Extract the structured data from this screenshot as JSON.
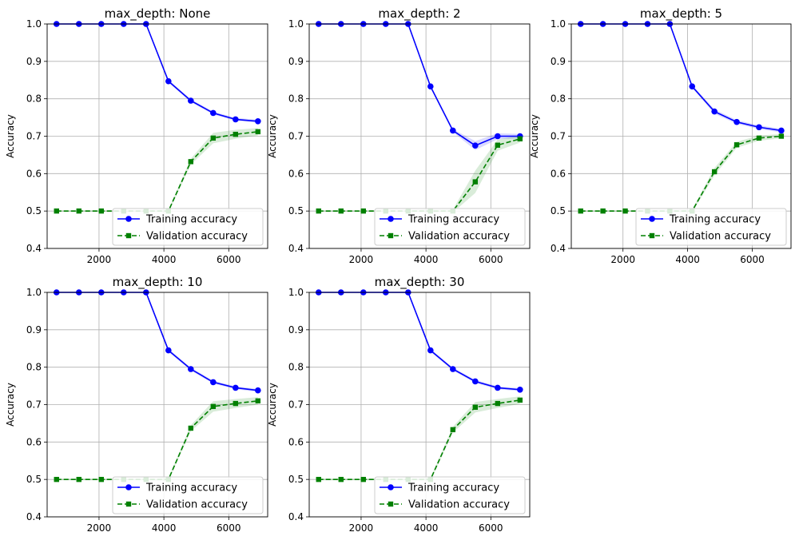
{
  "figure": {
    "background": "#ffffff",
    "colors": {
      "training": "#0000ff",
      "validation": "#008000",
      "grid": "#b0b0b0",
      "legend_border": "#cccccc"
    }
  },
  "chart_data": [
    {
      "type": "line",
      "title": "max_depth: None",
      "xlabel": "",
      "ylabel": "Accuracy",
      "xlim": [
        400,
        7200
      ],
      "ylim": [
        0.4,
        1.0
      ],
      "xticks": [
        2000,
        4000,
        6000
      ],
      "xtick_labels": [
        "2000",
        "4000",
        "6000"
      ],
      "yticks": [
        0.4,
        0.5,
        0.6,
        0.7,
        0.8,
        0.9,
        1.0
      ],
      "ytick_labels": [
        "0.4",
        "0.5",
        "0.6",
        "0.7",
        "0.8",
        "0.9",
        "1.0"
      ],
      "grid": true,
      "legend": "lower-right",
      "x": [
        690,
        1380,
        2070,
        2760,
        3450,
        4140,
        4830,
        5520,
        6210,
        6900
      ],
      "series": [
        {
          "name": "Training accuracy",
          "style": "solid",
          "marker": "circle",
          "color": "#0000ff",
          "values": [
            1.0,
            1.0,
            1.0,
            1.0,
            1.0,
            0.847,
            0.795,
            0.762,
            0.745,
            0.74
          ],
          "band": [
            0.002,
            0.002,
            0.002,
            0.002,
            0.002,
            0.004,
            0.004,
            0.004,
            0.004,
            0.004
          ]
        },
        {
          "name": "Validation accuracy",
          "style": "dashed",
          "marker": "square",
          "color": "#008000",
          "values": [
            0.5,
            0.5,
            0.5,
            0.5,
            0.5,
            0.5,
            0.632,
            0.695,
            0.705,
            0.712
          ],
          "band": [
            0.002,
            0.002,
            0.002,
            0.002,
            0.002,
            0.004,
            0.008,
            0.014,
            0.012,
            0.01
          ]
        }
      ]
    },
    {
      "type": "line",
      "title": "max_depth: 2",
      "xlabel": "",
      "ylabel": "Accuracy",
      "xlim": [
        400,
        7200
      ],
      "ylim": [
        0.4,
        1.0
      ],
      "xticks": [
        2000,
        4000,
        6000
      ],
      "xtick_labels": [
        "2000",
        "4000",
        "6000"
      ],
      "yticks": [
        0.4,
        0.5,
        0.6,
        0.7,
        0.8,
        0.9,
        1.0
      ],
      "ytick_labels": [
        "0.4",
        "0.5",
        "0.6",
        "0.7",
        "0.8",
        "0.9",
        "1.0"
      ],
      "grid": true,
      "legend": "lower-right",
      "x": [
        690,
        1380,
        2070,
        2760,
        3450,
        4140,
        4830,
        5520,
        6210,
        6900
      ],
      "series": [
        {
          "name": "Training accuracy",
          "style": "solid",
          "marker": "circle",
          "color": "#0000ff",
          "values": [
            1.0,
            1.0,
            1.0,
            1.0,
            1.0,
            0.833,
            0.715,
            0.675,
            0.7,
            0.7
          ],
          "band": [
            0.002,
            0.002,
            0.002,
            0.002,
            0.002,
            0.004,
            0.004,
            0.012,
            0.008,
            0.006
          ]
        },
        {
          "name": "Validation accuracy",
          "style": "dashed",
          "marker": "square",
          "color": "#008000",
          "values": [
            0.5,
            0.5,
            0.5,
            0.5,
            0.5,
            0.5,
            0.5,
            0.578,
            0.676,
            0.693
          ],
          "band": [
            0.002,
            0.002,
            0.002,
            0.002,
            0.002,
            0.004,
            0.004,
            0.03,
            0.015,
            0.01
          ]
        }
      ]
    },
    {
      "type": "line",
      "title": "max_depth: 5",
      "xlabel": "",
      "ylabel": "Accuracy",
      "xlim": [
        400,
        7200
      ],
      "ylim": [
        0.4,
        1.0
      ],
      "xticks": [
        2000,
        4000,
        6000
      ],
      "xtick_labels": [
        "2000",
        "4000",
        "6000"
      ],
      "yticks": [
        0.4,
        0.5,
        0.6,
        0.7,
        0.8,
        0.9,
        1.0
      ],
      "ytick_labels": [
        "0.4",
        "0.5",
        "0.6",
        "0.7",
        "0.8",
        "0.9",
        "1.0"
      ],
      "grid": true,
      "legend": "lower-right",
      "x": [
        690,
        1380,
        2070,
        2760,
        3450,
        4140,
        4830,
        5520,
        6210,
        6900
      ],
      "series": [
        {
          "name": "Training accuracy",
          "style": "solid",
          "marker": "circle",
          "color": "#0000ff",
          "values": [
            1.0,
            1.0,
            1.0,
            1.0,
            1.0,
            0.833,
            0.766,
            0.738,
            0.724,
            0.715
          ],
          "band": [
            0.002,
            0.002,
            0.002,
            0.002,
            0.002,
            0.004,
            0.006,
            0.005,
            0.005,
            0.005
          ]
        },
        {
          "name": "Validation accuracy",
          "style": "dashed",
          "marker": "square",
          "color": "#008000",
          "values": [
            0.5,
            0.5,
            0.5,
            0.5,
            0.5,
            0.5,
            0.605,
            0.677,
            0.695,
            0.7
          ],
          "band": [
            0.002,
            0.002,
            0.002,
            0.002,
            0.002,
            0.004,
            0.01,
            0.008,
            0.007,
            0.006
          ]
        }
      ]
    },
    {
      "type": "line",
      "title": "max_depth: 10",
      "xlabel": "",
      "ylabel": "Accuracy",
      "xlim": [
        400,
        7200
      ],
      "ylim": [
        0.4,
        1.0
      ],
      "xticks": [
        2000,
        4000,
        6000
      ],
      "xtick_labels": [
        "2000",
        "4000",
        "6000"
      ],
      "yticks": [
        0.4,
        0.5,
        0.6,
        0.7,
        0.8,
        0.9,
        1.0
      ],
      "ytick_labels": [
        "0.4",
        "0.5",
        "0.6",
        "0.7",
        "0.8",
        "0.9",
        "1.0"
      ],
      "grid": true,
      "legend": "lower-right",
      "x": [
        690,
        1380,
        2070,
        2760,
        3450,
        4140,
        4830,
        5520,
        6210,
        6900
      ],
      "series": [
        {
          "name": "Training accuracy",
          "style": "solid",
          "marker": "circle",
          "color": "#0000ff",
          "values": [
            1.0,
            1.0,
            1.0,
            1.0,
            1.0,
            0.845,
            0.795,
            0.76,
            0.745,
            0.738
          ],
          "band": [
            0.002,
            0.002,
            0.002,
            0.002,
            0.002,
            0.004,
            0.004,
            0.004,
            0.004,
            0.004
          ]
        },
        {
          "name": "Validation accuracy",
          "style": "dashed",
          "marker": "square",
          "color": "#008000",
          "values": [
            0.5,
            0.5,
            0.5,
            0.5,
            0.5,
            0.5,
            0.637,
            0.695,
            0.703,
            0.71
          ],
          "band": [
            0.002,
            0.002,
            0.002,
            0.002,
            0.002,
            0.004,
            0.008,
            0.014,
            0.012,
            0.01
          ]
        }
      ]
    },
    {
      "type": "line",
      "title": "max_depth: 30",
      "xlabel": "",
      "ylabel": "Accuracy",
      "xlim": [
        400,
        7200
      ],
      "ylim": [
        0.4,
        1.0
      ],
      "xticks": [
        2000,
        4000,
        6000
      ],
      "xtick_labels": [
        "2000",
        "4000",
        "6000"
      ],
      "yticks": [
        0.4,
        0.5,
        0.6,
        0.7,
        0.8,
        0.9,
        1.0
      ],
      "ytick_labels": [
        "0.4",
        "0.5",
        "0.6",
        "0.7",
        "0.8",
        "0.9",
        "1.0"
      ],
      "grid": true,
      "legend": "lower-right",
      "x": [
        690,
        1380,
        2070,
        2760,
        3450,
        4140,
        4830,
        5520,
        6210,
        6900
      ],
      "series": [
        {
          "name": "Training accuracy",
          "style": "solid",
          "marker": "circle",
          "color": "#0000ff",
          "values": [
            1.0,
            1.0,
            1.0,
            1.0,
            1.0,
            0.845,
            0.795,
            0.762,
            0.745,
            0.74
          ],
          "band": [
            0.002,
            0.002,
            0.002,
            0.002,
            0.002,
            0.004,
            0.004,
            0.004,
            0.004,
            0.004
          ]
        },
        {
          "name": "Validation accuracy",
          "style": "dashed",
          "marker": "square",
          "color": "#008000",
          "values": [
            0.5,
            0.5,
            0.5,
            0.5,
            0.5,
            0.5,
            0.633,
            0.693,
            0.703,
            0.712
          ],
          "band": [
            0.002,
            0.002,
            0.002,
            0.002,
            0.002,
            0.004,
            0.008,
            0.014,
            0.012,
            0.01
          ]
        }
      ]
    }
  ]
}
